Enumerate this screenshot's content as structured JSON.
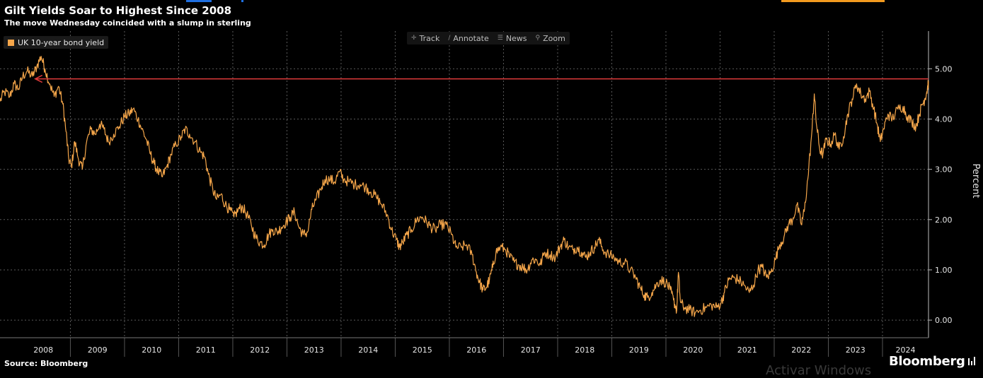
{
  "header": {
    "title": "Gilt Yields Soar to Highest Since 2008",
    "subtitle": "The move Wednesday coincided with a slump in sterling"
  },
  "toolbar": {
    "items": [
      {
        "label": "Track",
        "icon": "crosshair-icon"
      },
      {
        "label": "Annotate",
        "icon": "pencil-icon"
      },
      {
        "label": "News",
        "icon": "news-icon"
      },
      {
        "label": "Zoom",
        "icon": "magnifier-icon"
      }
    ]
  },
  "footer": {
    "source": "Source: Bloomberg",
    "brand": "Bloomberg",
    "watermark": "Activar Windows"
  },
  "colors": {
    "background": "#000000",
    "series": "#f5a64a",
    "grid": "#5a5a5a",
    "annotation_arrow": "#e03a3a",
    "top_stripe_orange": "#f29a1f",
    "top_stripe_blue": "#1f6fe0"
  },
  "chart_data": {
    "type": "line",
    "title": "Gilt Yields Soar to Highest Since 2008",
    "subtitle": "The move Wednesday coincided with a slump in sterling",
    "ylabel": "Percent",
    "ylim": [
      -0.35,
      5.75
    ],
    "xlim": [
      2007.7,
      2024.85
    ],
    "yticks": [
      "0.00",
      "1.00",
      "2.00",
      "3.00",
      "4.00",
      "5.00"
    ],
    "xticks": [
      "2008",
      "2009",
      "2010",
      "2011",
      "2012",
      "2013",
      "2014",
      "2015",
      "2016",
      "2017",
      "2018",
      "2019",
      "2020",
      "2021",
      "2022",
      "2023",
      "2024"
    ],
    "grid": true,
    "legend_position": "top-left",
    "series": [
      {
        "name": "UK 10-year bond yield",
        "points": [
          [
            2007.7,
            4.35
          ],
          [
            2007.78,
            4.55
          ],
          [
            2007.88,
            4.45
          ],
          [
            2007.96,
            4.7
          ],
          [
            2008.04,
            4.6
          ],
          [
            2008.12,
            4.85
          ],
          [
            2008.2,
            4.95
          ],
          [
            2008.3,
            4.85
          ],
          [
            2008.38,
            5.05
          ],
          [
            2008.46,
            5.25
          ],
          [
            2008.53,
            5.0
          ],
          [
            2008.62,
            4.7
          ],
          [
            2008.7,
            4.45
          ],
          [
            2008.78,
            4.65
          ],
          [
            2008.86,
            4.3
          ],
          [
            2008.92,
            3.75
          ],
          [
            2008.97,
            3.2
          ],
          [
            2009.02,
            3.05
          ],
          [
            2009.08,
            3.55
          ],
          [
            2009.15,
            3.2
          ],
          [
            2009.22,
            3.0
          ],
          [
            2009.3,
            3.55
          ],
          [
            2009.38,
            3.8
          ],
          [
            2009.46,
            3.7
          ],
          [
            2009.54,
            3.9
          ],
          [
            2009.62,
            3.8
          ],
          [
            2009.7,
            3.55
          ],
          [
            2009.8,
            3.7
          ],
          [
            2009.9,
            3.85
          ],
          [
            2010.0,
            4.05
          ],
          [
            2010.08,
            4.1
          ],
          [
            2010.16,
            4.2
          ],
          [
            2010.25,
            4.0
          ],
          [
            2010.32,
            3.8
          ],
          [
            2010.4,
            3.6
          ],
          [
            2010.48,
            3.3
          ],
          [
            2010.55,
            3.1
          ],
          [
            2010.62,
            2.95
          ],
          [
            2010.7,
            2.85
          ],
          [
            2010.78,
            3.05
          ],
          [
            2010.86,
            3.3
          ],
          [
            2010.95,
            3.5
          ],
          [
            2011.05,
            3.65
          ],
          [
            2011.12,
            3.8
          ],
          [
            2011.2,
            3.7
          ],
          [
            2011.3,
            3.55
          ],
          [
            2011.4,
            3.35
          ],
          [
            2011.48,
            3.25
          ],
          [
            2011.55,
            2.9
          ],
          [
            2011.63,
            2.6
          ],
          [
            2011.7,
            2.4
          ],
          [
            2011.78,
            2.5
          ],
          [
            2011.86,
            2.3
          ],
          [
            2011.94,
            2.2
          ],
          [
            2012.02,
            2.05
          ],
          [
            2012.1,
            2.2
          ],
          [
            2012.18,
            2.25
          ],
          [
            2012.26,
            2.1
          ],
          [
            2012.34,
            1.9
          ],
          [
            2012.42,
            1.65
          ],
          [
            2012.5,
            1.55
          ],
          [
            2012.58,
            1.5
          ],
          [
            2012.66,
            1.7
          ],
          [
            2012.74,
            1.8
          ],
          [
            2012.82,
            1.75
          ],
          [
            2012.9,
            1.85
          ],
          [
            2012.98,
            1.95
          ],
          [
            2013.06,
            2.05
          ],
          [
            2013.14,
            2.15
          ],
          [
            2013.22,
            1.85
          ],
          [
            2013.3,
            1.7
          ],
          [
            2013.38,
            1.75
          ],
          [
            2013.46,
            2.2
          ],
          [
            2013.54,
            2.4
          ],
          [
            2013.62,
            2.6
          ],
          [
            2013.7,
            2.8
          ],
          [
            2013.8,
            2.8
          ],
          [
            2013.88,
            2.75
          ],
          [
            2013.97,
            2.95
          ],
          [
            2014.05,
            2.8
          ],
          [
            2014.15,
            2.75
          ],
          [
            2014.25,
            2.7
          ],
          [
            2014.35,
            2.7
          ],
          [
            2014.45,
            2.65
          ],
          [
            2014.55,
            2.55
          ],
          [
            2014.65,
            2.45
          ],
          [
            2014.75,
            2.3
          ],
          [
            2014.85,
            2.1
          ],
          [
            2014.93,
            1.8
          ],
          [
            2015.02,
            1.6
          ],
          [
            2015.08,
            1.45
          ],
          [
            2015.14,
            1.55
          ],
          [
            2015.22,
            1.7
          ],
          [
            2015.3,
            1.8
          ],
          [
            2015.4,
            2.0
          ],
          [
            2015.5,
            2.05
          ],
          [
            2015.58,
            1.95
          ],
          [
            2015.66,
            1.85
          ],
          [
            2015.74,
            1.8
          ],
          [
            2015.84,
            1.9
          ],
          [
            2015.94,
            1.9
          ],
          [
            2016.04,
            1.7
          ],
          [
            2016.12,
            1.45
          ],
          [
            2016.22,
            1.45
          ],
          [
            2016.32,
            1.5
          ],
          [
            2016.42,
            1.3
          ],
          [
            2016.5,
            0.95
          ],
          [
            2016.56,
            0.75
          ],
          [
            2016.62,
            0.6
          ],
          [
            2016.68,
            0.65
          ],
          [
            2016.74,
            0.8
          ],
          [
            2016.8,
            1.05
          ],
          [
            2016.86,
            1.35
          ],
          [
            2016.94,
            1.45
          ],
          [
            2017.04,
            1.4
          ],
          [
            2017.12,
            1.25
          ],
          [
            2017.2,
            1.15
          ],
          [
            2017.28,
            1.1
          ],
          [
            2017.36,
            1.05
          ],
          [
            2017.44,
            1.0
          ],
          [
            2017.52,
            1.2
          ],
          [
            2017.6,
            1.2
          ],
          [
            2017.68,
            1.1
          ],
          [
            2017.76,
            1.35
          ],
          [
            2017.86,
            1.3
          ],
          [
            2017.96,
            1.25
          ],
          [
            2018.04,
            1.45
          ],
          [
            2018.12,
            1.6
          ],
          [
            2018.2,
            1.45
          ],
          [
            2018.28,
            1.4
          ],
          [
            2018.36,
            1.45
          ],
          [
            2018.44,
            1.35
          ],
          [
            2018.52,
            1.25
          ],
          [
            2018.6,
            1.35
          ],
          [
            2018.68,
            1.45
          ],
          [
            2018.76,
            1.6
          ],
          [
            2018.84,
            1.4
          ],
          [
            2018.94,
            1.3
          ],
          [
            2019.04,
            1.25
          ],
          [
            2019.14,
            1.15
          ],
          [
            2019.24,
            1.15
          ],
          [
            2019.34,
            1.0
          ],
          [
            2019.44,
            0.85
          ],
          [
            2019.52,
            0.65
          ],
          [
            2019.6,
            0.5
          ],
          [
            2019.66,
            0.45
          ],
          [
            2019.74,
            0.55
          ],
          [
            2019.82,
            0.7
          ],
          [
            2019.9,
            0.8
          ],
          [
            2020.0,
            0.75
          ],
          [
            2020.08,
            0.6
          ],
          [
            2020.14,
            0.4
          ],
          [
            2020.2,
            0.2
          ],
          [
            2020.23,
            0.95
          ],
          [
            2020.27,
            0.35
          ],
          [
            2020.34,
            0.25
          ],
          [
            2020.44,
            0.2
          ],
          [
            2020.54,
            0.15
          ],
          [
            2020.64,
            0.2
          ],
          [
            2020.74,
            0.25
          ],
          [
            2020.84,
            0.3
          ],
          [
            2020.94,
            0.25
          ],
          [
            2021.02,
            0.35
          ],
          [
            2021.08,
            0.55
          ],
          [
            2021.16,
            0.8
          ],
          [
            2021.24,
            0.85
          ],
          [
            2021.34,
            0.8
          ],
          [
            2021.44,
            0.7
          ],
          [
            2021.54,
            0.55
          ],
          [
            2021.62,
            0.7
          ],
          [
            2021.7,
            1.0
          ],
          [
            2021.78,
            1.05
          ],
          [
            2021.86,
            0.85
          ],
          [
            2021.94,
            0.95
          ],
          [
            2022.02,
            1.2
          ],
          [
            2022.1,
            1.5
          ],
          [
            2022.18,
            1.65
          ],
          [
            2022.26,
            1.9
          ],
          [
            2022.34,
            2.0
          ],
          [
            2022.42,
            2.3
          ],
          [
            2022.5,
            1.9
          ],
          [
            2022.56,
            2.2
          ],
          [
            2022.62,
            2.8
          ],
          [
            2022.7,
            3.8
          ],
          [
            2022.74,
            4.5
          ],
          [
            2022.78,
            3.9
          ],
          [
            2022.84,
            3.4
          ],
          [
            2022.9,
            3.3
          ],
          [
            2022.96,
            3.6
          ],
          [
            2023.04,
            3.5
          ],
          [
            2023.12,
            3.7
          ],
          [
            2023.2,
            3.4
          ],
          [
            2023.28,
            3.65
          ],
          [
            2023.36,
            4.1
          ],
          [
            2023.44,
            4.4
          ],
          [
            2023.52,
            4.7
          ],
          [
            2023.6,
            4.5
          ],
          [
            2023.68,
            4.4
          ],
          [
            2023.76,
            4.55
          ],
          [
            2023.84,
            4.2
          ],
          [
            2023.9,
            3.9
          ],
          [
            2023.96,
            3.55
          ],
          [
            2024.02,
            3.8
          ],
          [
            2024.1,
            4.1
          ],
          [
            2024.18,
            4.0
          ],
          [
            2024.28,
            4.2
          ],
          [
            2024.38,
            4.25
          ],
          [
            2024.46,
            4.05
          ],
          [
            2024.54,
            3.95
          ],
          [
            2024.62,
            3.85
          ],
          [
            2024.68,
            4.1
          ],
          [
            2024.74,
            4.3
          ],
          [
            2024.78,
            4.4
          ],
          [
            2024.82,
            4.55
          ],
          [
            2024.85,
            4.75
          ]
        ]
      }
    ],
    "annotations": [
      {
        "type": "arrow",
        "label": "",
        "y": 4.8,
        "x_from": 2024.85,
        "x_to": 2008.35
      }
    ]
  }
}
